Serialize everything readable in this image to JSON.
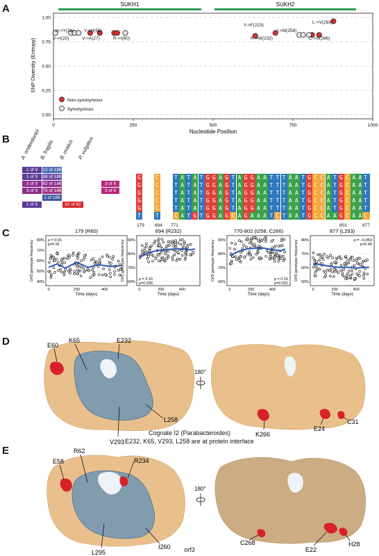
{
  "panels": {
    "a": "A",
    "b": "B",
    "c": "C",
    "d": "D",
    "e": "E"
  },
  "panelA": {
    "domain1": "SUKH1",
    "domain2": "SUKH2",
    "ylabel": "SNP Diversity (Entropy)",
    "xlabel": "Nucleotide Position",
    "legend_nonsyn": "Non-synonymous",
    "legend_syn": "Synonymous",
    "annotations": [
      "H->Y(26)",
      "V->I(20)",
      "Y->H(55)",
      "V->A(27)",
      "R->I(60)",
      "Y->F(223)",
      "R->W(232)",
      "I->M(258)",
      "C->S(266)",
      "L->V(293)"
    ],
    "colors": {
      "nonsyn": "#d7302c",
      "syn": "#e6e6e6",
      "domain": "#2e9b4f"
    }
  },
  "chart_data": [
    {
      "type": "scatter",
      "xlabel": "Nucleotide Position",
      "ylabel": "SNP Diversity (Entropy)",
      "xlim": [
        0,
        1000
      ],
      "ylim": [
        0,
        1
      ],
      "xticks": [
        0,
        250,
        500,
        750,
        1000
      ],
      "yticks": [
        "0.00",
        "0.25",
        "0.50",
        "0.75",
        "1.00"
      ],
      "grid": true,
      "legend": "bottom-left",
      "series": [
        {
          "name": "Non-synonymous",
          "points": [
            [
              115,
              0.84
            ],
            [
              145,
              0.84
            ],
            [
              190,
              0.84
            ],
            [
              200,
              0.84
            ],
            [
              632,
              0.81
            ],
            [
              695,
              0.84
            ],
            [
              810,
              0.82
            ],
            [
              832,
              0.82
            ],
            [
              877,
              0.96
            ]
          ]
        },
        {
          "name": "Synonymous",
          "points": [
            [
              6,
              0.84
            ],
            [
              55,
              0.84
            ],
            [
              66,
              0.84
            ],
            [
              79,
              0.84
            ],
            [
              225,
              0.84
            ],
            [
              770,
              0.82
            ],
            [
              782,
              0.82
            ],
            [
              800,
              0.82
            ]
          ]
        }
      ]
    }
  ],
  "panelB": {
    "species": [
      "A. onderdonkii",
      "B. fragilis",
      "B. ovatus",
      "P. vulgatus"
    ],
    "grid": [
      [
        "1 of 9",
        "12 of 186",
        "",
        ""
      ],
      [
        "1 of 9",
        "38 of 186",
        "",
        ""
      ],
      [
        "3 of 9",
        "62 of 186",
        "",
        "3 of 6"
      ],
      [
        "3 of 9",
        "73 of 186",
        "",
        "3 of 6"
      ],
      [
        "",
        "1 of 186",
        "",
        ""
      ],
      [
        "1 of 9",
        "",
        "92 of 92",
        ""
      ]
    ],
    "col179": [
      "G",
      "G",
      "G",
      "G",
      "G",
      "T"
    ],
    "col694": [
      "C",
      "C",
      "C",
      "C",
      "C",
      "T"
    ],
    "seqs": [
      "TATATGGAGTAGGAATTTAATGCCATGCAAT",
      "TATATGGAGTAGGAATTTAATGCCATGCAAT",
      "TATATGGAGTAGGAATTTAATGCCATGCAAT",
      "TATATGGAGTAGGAATTTAATGCCATGCAAT",
      "TATATGGAGTAGGAATTTAATGCCATGCAAT",
      "CATGTGGAGCAGAAATCTAATGCCAAGCAAC"
    ],
    "col877": [
      "T",
      "T",
      "T",
      "T",
      "T",
      "C"
    ],
    "positions": [
      "179",
      "694",
      "771",
      "801",
      "877"
    ],
    "nuc_colors": {
      "A": "#3aa24a",
      "T": "#2f77bd",
      "G": "#e0403a",
      "C": "#f2a93b"
    }
  },
  "panelC": {
    "titles": [
      "179 (R60)",
      "694 (R232)",
      "770-802 (I258, C266)",
      "877 (L293)"
    ],
    "ylabel": "Orf3 genotype frequency",
    "xlabel": "Time (days)",
    "stats": [
      [
        "ρ = 0.01",
        "p=0.91"
      ],
      [
        "ρ = 0.15",
        "p=0.036"
      ],
      [
        "ρ = 0.16",
        "p=0.021"
      ],
      [
        "ρ = −0.053",
        "p=0.46"
      ]
    ],
    "yticks": [
      [
        "80%",
        "70%",
        "60%",
        "50%",
        "40%"
      ],
      [
        "90%",
        "80%",
        "70%",
        "60%"
      ],
      [
        "90%",
        "80%",
        "70%",
        "60%"
      ],
      [
        "80%",
        "70%",
        "60%",
        "50%"
      ]
    ],
    "xticks": [
      "0",
      "200",
      "400"
    ],
    "curves": [
      [
        [
          0,
          0.62
        ],
        [
          60,
          0.66
        ],
        [
          120,
          0.61
        ],
        [
          200,
          0.68
        ],
        [
          280,
          0.62
        ],
        [
          360,
          0.65
        ],
        [
          440,
          0.63
        ],
        [
          520,
          0.64
        ]
      ],
      [
        [
          0,
          0.74
        ],
        [
          80,
          0.79
        ],
        [
          160,
          0.82
        ],
        [
          240,
          0.83
        ],
        [
          320,
          0.84
        ],
        [
          400,
          0.84
        ],
        [
          480,
          0.83
        ],
        [
          520,
          0.84
        ]
      ],
      [
        [
          0,
          0.76
        ],
        [
          80,
          0.81
        ],
        [
          160,
          0.84
        ],
        [
          240,
          0.85
        ],
        [
          320,
          0.85
        ],
        [
          400,
          0.83
        ],
        [
          480,
          0.82
        ],
        [
          520,
          0.84
        ]
      ],
      [
        [
          0,
          0.66
        ],
        [
          80,
          0.65
        ],
        [
          160,
          0.63
        ],
        [
          240,
          0.62
        ],
        [
          320,
          0.62
        ],
        [
          400,
          0.61
        ],
        [
          480,
          0.62
        ],
        [
          520,
          0.62
        ]
      ]
    ]
  },
  "panelD": {
    "labels": [
      "E60",
      "K65",
      "E232",
      "V293",
      "L258",
      "K266",
      "E24",
      "C31"
    ],
    "rotation": "180°",
    "caption1": "Cognate I2 (Parabacteroides)",
    "caption2": "E232, K65, V293, L258 are at protein interface"
  },
  "panelE": {
    "labels": [
      "R62",
      "R234",
      "E58",
      "L295",
      "I260",
      "C268",
      "E22",
      "H28"
    ],
    "rotation": "180°",
    "caption": "orf3"
  }
}
